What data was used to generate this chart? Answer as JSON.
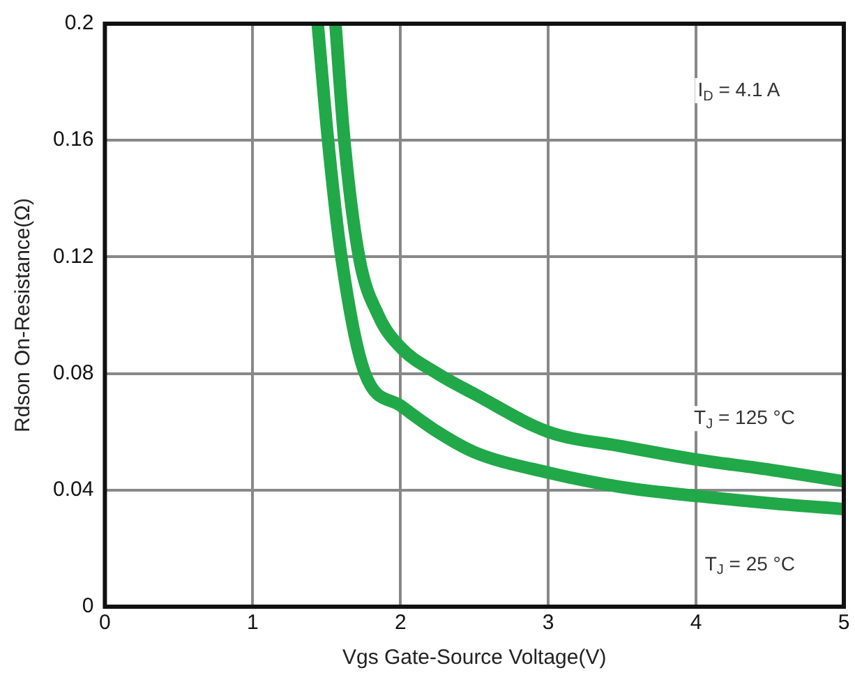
{
  "chart_data": {
    "type": "line",
    "xlabel": "Vgs Gate-Source Voltage(V)",
    "ylabel": "Rdson On-Resistance(Ω)",
    "xlim": [
      0,
      5
    ],
    "xticks": [
      0,
      1,
      2,
      3,
      4,
      5
    ],
    "ylim": [
      0,
      0.2
    ],
    "yticks": [
      0,
      0.04,
      0.08,
      0.12,
      0.16,
      {
        "value": 0.2,
        "label": "0.2"
      }
    ],
    "grid": true,
    "legend": false,
    "marker": "none",
    "line_style": "solid",
    "series": [
      {
        "name": "T$_{J}$ = 25 °C",
        "color": "#21a848",
        "x": [
          1.44,
          1.51,
          1.6,
          1.76,
          2.0,
          2.25,
          2.5,
          3.0,
          3.5,
          4.0,
          4.5,
          5.0
        ],
        "values": [
          0.2,
          0.16,
          0.12,
          0.08,
          0.069,
          0.06,
          0.053,
          0.046,
          0.041,
          0.038,
          0.0355,
          0.0335
        ]
      },
      {
        "name": "T$_{J}$ = 125 °C",
        "color": "#21a848",
        "x": [
          1.56,
          1.62,
          1.72,
          1.85,
          2.0,
          2.25,
          2.5,
          3.0,
          3.5,
          4.0,
          4.5,
          5.0
        ],
        "values": [
          0.2,
          0.16,
          0.12,
          0.1,
          0.089,
          0.08,
          0.073,
          0.06,
          0.055,
          0.0505,
          0.047,
          0.043
        ]
      }
    ],
    "annotations": [
      "I$_{D}$ = 4.1 A"
    ]
  }
}
